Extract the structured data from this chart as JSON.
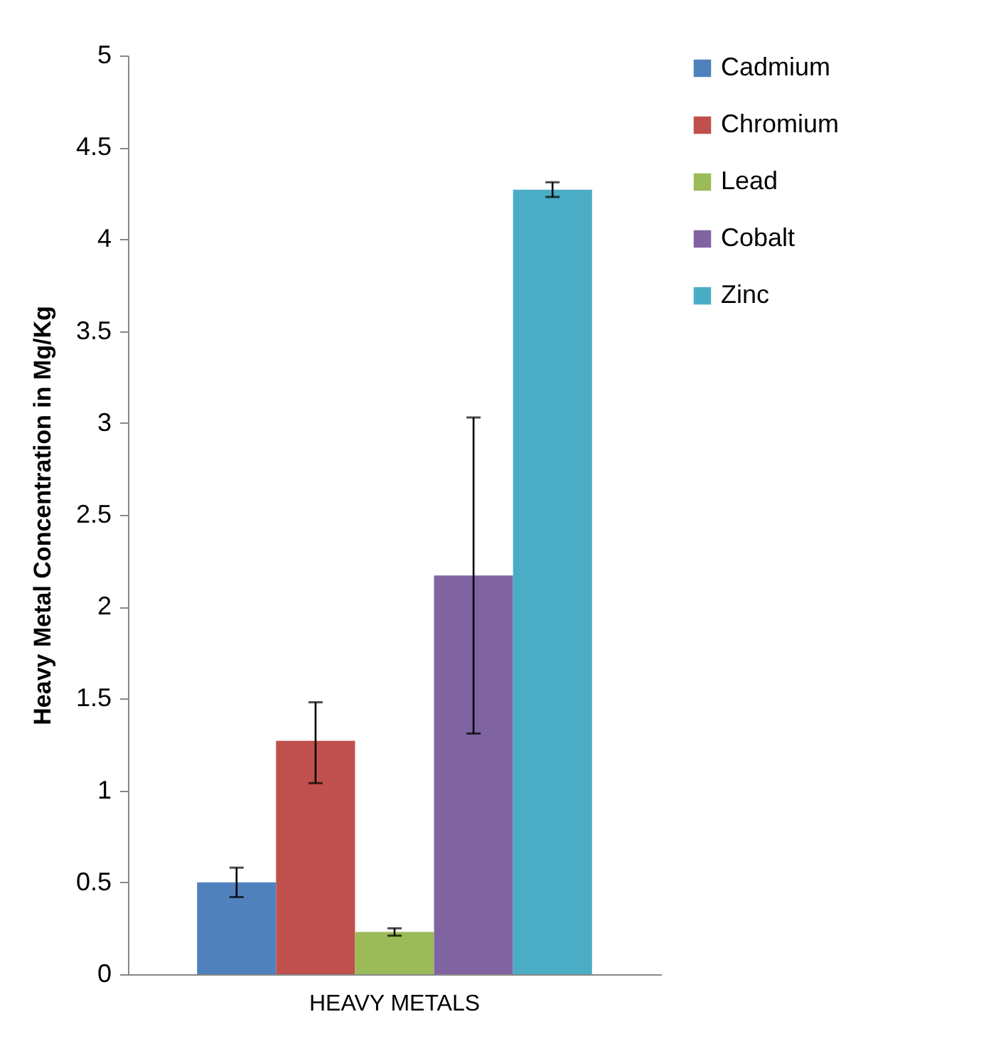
{
  "chart_data": {
    "type": "bar",
    "categories": [
      "HEAVY METALS"
    ],
    "ylabel": "Heavy  Metal Concentration in Mg/Kg",
    "ylim": [
      0,
      5
    ],
    "yticks": [
      0,
      0.5,
      1,
      1.5,
      2,
      2.5,
      3,
      3.5,
      4,
      4.5,
      5
    ],
    "grid": false,
    "legend": "right",
    "series": [
      {
        "name": "Cadmium",
        "color": "#4f81bd",
        "values": [
          0.5
        ],
        "errors": [
          [
            0.42,
            0.58
          ]
        ]
      },
      {
        "name": "Chromium",
        "color": "#c0504d",
        "values": [
          1.27
        ],
        "errors": [
          [
            1.04,
            1.48
          ]
        ]
      },
      {
        "name": "Lead",
        "color": "#9bbb59",
        "values": [
          0.23
        ],
        "errors": [
          [
            0.21,
            0.25
          ]
        ]
      },
      {
        "name": "Cobalt",
        "color": "#8064a2",
        "values": [
          2.17
        ],
        "errors": [
          [
            1.31,
            3.03
          ]
        ]
      },
      {
        "name": "Zinc",
        "color": "#4bacc6",
        "values": [
          4.27
        ],
        "errors": [
          [
            4.23,
            4.31
          ]
        ]
      }
    ]
  }
}
